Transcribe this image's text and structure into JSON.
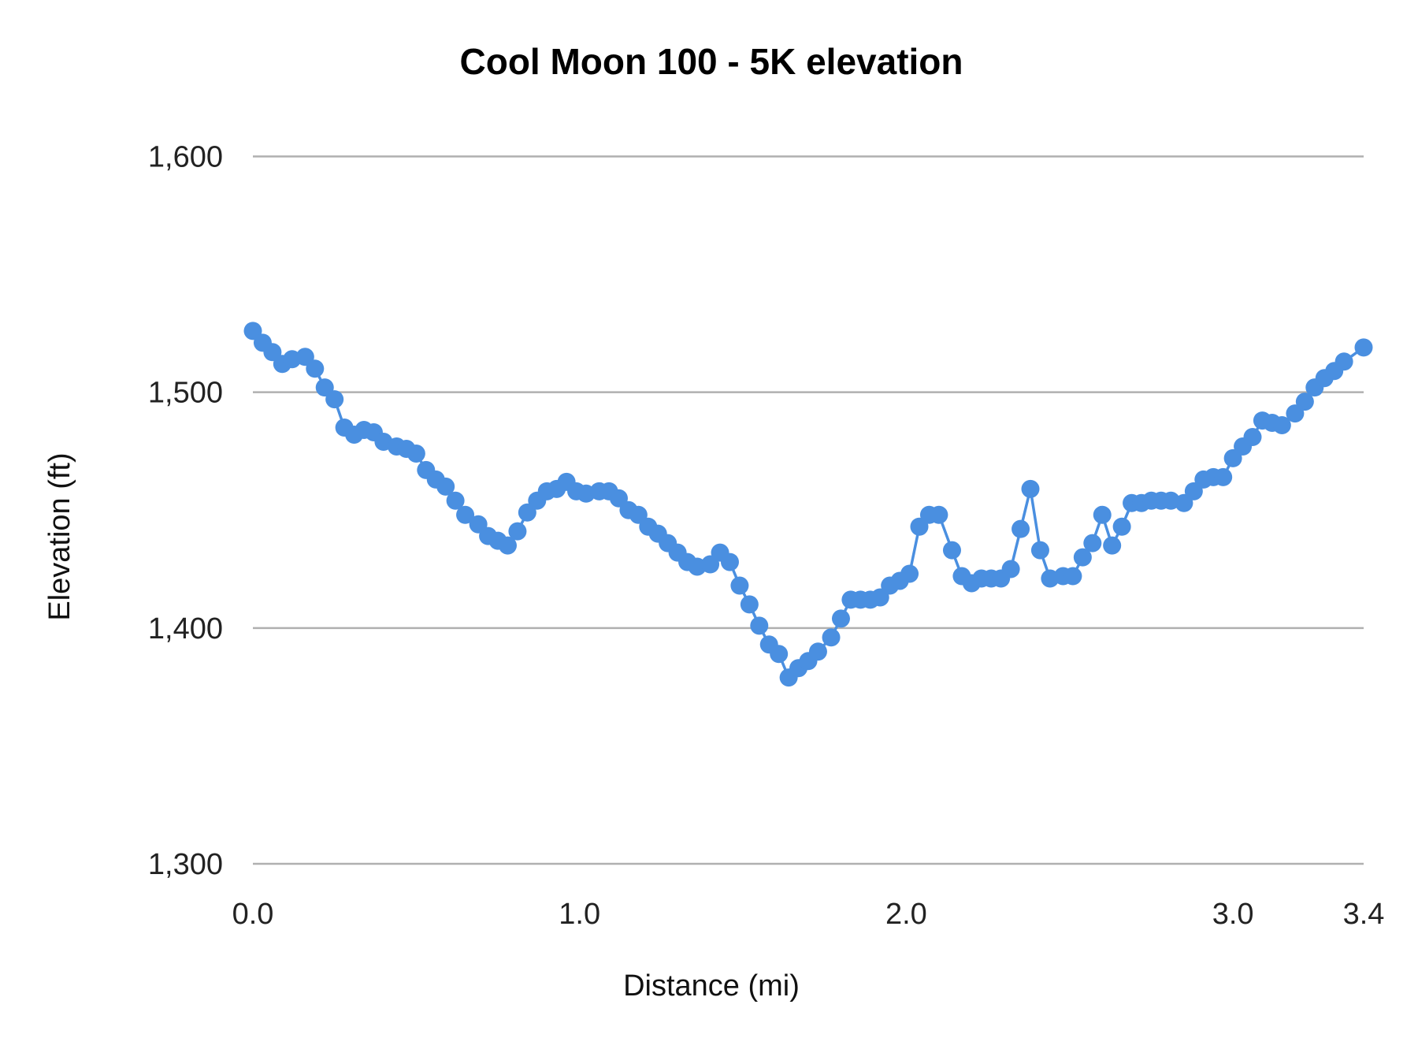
{
  "chart_data": {
    "type": "line",
    "title": "Cool Moon 100 - 5K elevation",
    "xlabel": "Distance (mi)",
    "ylabel": "Elevation (ft)",
    "xlim": [
      0,
      3.4
    ],
    "ylim": [
      1300,
      1600
    ],
    "x_ticks": [
      "0.0",
      "1.0",
      "2.0",
      "3.0",
      "3.4"
    ],
    "x_tick_values": [
      0,
      1,
      2,
      3,
      3.4
    ],
    "y_ticks": [
      "1,300",
      "1,400",
      "1,500",
      "1,600"
    ],
    "y_tick_values": [
      1300,
      1400,
      1500,
      1600
    ],
    "grid": "horizontal",
    "markers": true,
    "color": "#4a8fe0",
    "series": [
      {
        "x": [
          0.0,
          0.03,
          0.06,
          0.09,
          0.12,
          0.16,
          0.19,
          0.22,
          0.25,
          0.28,
          0.31,
          0.34,
          0.37,
          0.4,
          0.44,
          0.47,
          0.5,
          0.53,
          0.56,
          0.59,
          0.62,
          0.65,
          0.69,
          0.72,
          0.75,
          0.78,
          0.81,
          0.84,
          0.87,
          0.9,
          0.93,
          0.96,
          0.99,
          1.02,
          1.06,
          1.09,
          1.12,
          1.15,
          1.18,
          1.21,
          1.24,
          1.27,
          1.3,
          1.33,
          1.36,
          1.4,
          1.43,
          1.46,
          1.49,
          1.52,
          1.55,
          1.58,
          1.61,
          1.64,
          1.67,
          1.7,
          1.73,
          1.77,
          1.8,
          1.83,
          1.86,
          1.89,
          1.92,
          1.95,
          1.98,
          2.01,
          2.04,
          2.07,
          2.1,
          2.14,
          2.17,
          2.2,
          2.23,
          2.26,
          2.29,
          2.32,
          2.35,
          2.38,
          2.41,
          2.44,
          2.48,
          2.51,
          2.54,
          2.57,
          2.6,
          2.63,
          2.66,
          2.69,
          2.72,
          2.75,
          2.78,
          2.81,
          2.85,
          2.88,
          2.91,
          2.94,
          2.97,
          3.0,
          3.03,
          3.06,
          3.09,
          3.12,
          3.15,
          3.19,
          3.22,
          3.25,
          3.28,
          3.31,
          3.34,
          3.4
        ],
        "y": [
          1526,
          1521,
          1517,
          1512,
          1514,
          1515,
          1510,
          1502,
          1497,
          1485,
          1482,
          1484,
          1483,
          1479,
          1477,
          1476,
          1474,
          1467,
          1463,
          1460,
          1454,
          1448,
          1444,
          1439,
          1437,
          1435,
          1441,
          1449,
          1454,
          1458,
          1459,
          1462,
          1458,
          1457,
          1458,
          1458,
          1455,
          1450,
          1448,
          1443,
          1440,
          1436,
          1432,
          1428,
          1426,
          1427,
          1432,
          1428,
          1418,
          1410,
          1401,
          1393,
          1389,
          1379,
          1383,
          1386,
          1390,
          1396,
          1404,
          1412,
          1412,
          1412,
          1413,
          1418,
          1420,
          1423,
          1443,
          1448,
          1448,
          1433,
          1422,
          1419,
          1421,
          1421,
          1421,
          1425,
          1442,
          1459,
          1433,
          1421,
          1422,
          1422,
          1430,
          1436,
          1448,
          1435,
          1443,
          1453,
          1453,
          1454,
          1454,
          1454,
          1453,
          1458,
          1463,
          1464,
          1464,
          1472,
          1477,
          1481,
          1488,
          1487,
          1486,
          1491,
          1496,
          1502,
          1506,
          1509,
          1513,
          1519
        ]
      }
    ]
  }
}
